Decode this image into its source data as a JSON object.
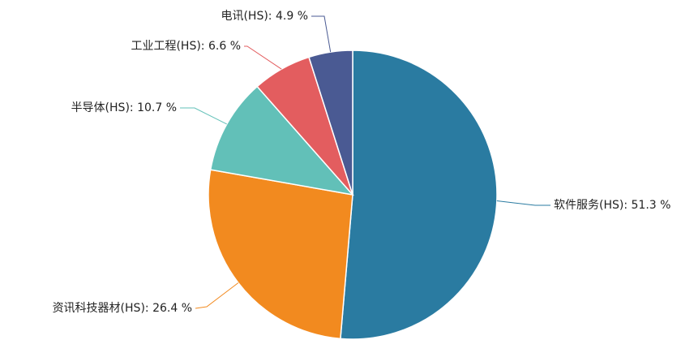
{
  "chart_data": {
    "type": "pie",
    "values": [
      51.3,
      26.4,
      10.7,
      6.6,
      4.9
    ],
    "value_labels": [
      "软件服务(HS): 51.3 %",
      "资讯科技器材(HS): 26.4 %",
      "半导体(HS): 10.7 %",
      "工业工程(HS): 6.6 %",
      "电讯(HS): 4.9 %"
    ],
    "colors": [
      "#2a7ba1",
      "#f28a1f",
      "#62c0b8",
      "#e35d5f",
      "#4a5a93"
    ]
  }
}
